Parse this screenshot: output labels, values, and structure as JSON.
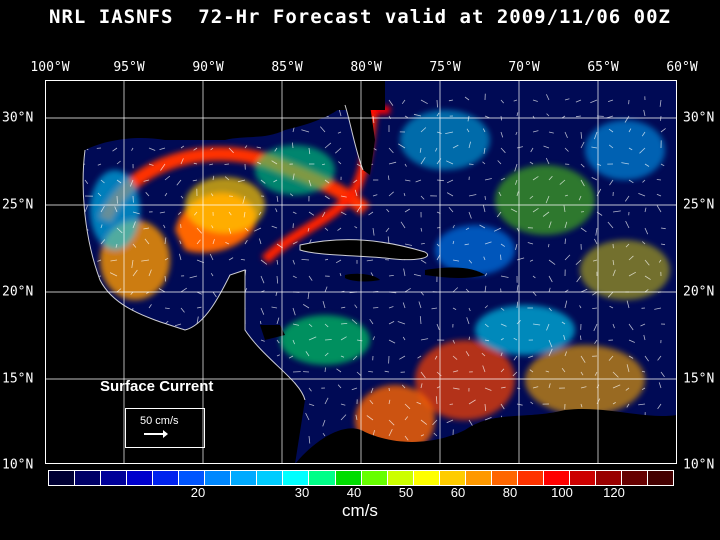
{
  "title": "NRL IASNFS  72-Hr Forecast valid at 2009/11/06 00Z",
  "lon_labels": [
    "100°W",
    "95°W",
    "90°W",
    "85°W",
    "80°W",
    "75°W",
    "70°W",
    "65°W",
    "60°W"
  ],
  "lat_labels": [
    "30°N",
    "25°N",
    "20°N",
    "15°N",
    "10°N"
  ],
  "legend": {
    "label": "Surface Current",
    "scale_text": "50 cm/s"
  },
  "colorbar": {
    "colors": [
      "#000033",
      "#000066",
      "#000099",
      "#0000cc",
      "#0022ee",
      "#0055ff",
      "#0088ff",
      "#00aaff",
      "#00ccff",
      "#00ffff",
      "#00ff88",
      "#00dd00",
      "#66ff00",
      "#ccff00",
      "#ffff00",
      "#ffcc00",
      "#ff9900",
      "#ff6600",
      "#ff3300",
      "#ff0000",
      "#cc0000",
      "#990000",
      "#660000",
      "#440000"
    ],
    "tick_labels": [
      "20",
      "30",
      "40",
      "50",
      "60",
      "80",
      "100",
      "120"
    ],
    "units": "cm/s"
  }
}
